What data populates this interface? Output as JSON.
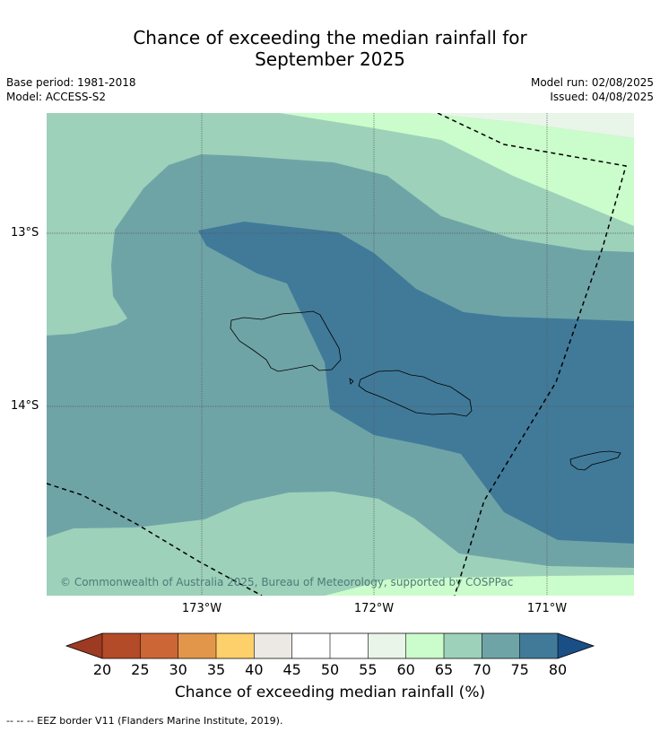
{
  "title_line1": "Chance of exceeding the median rainfall for",
  "title_line2": "September 2025",
  "base_period": "Base period: 1981-2018",
  "model": "Model: ACCESS-S2",
  "model_run": "Model run: 02/08/2025",
  "issued": "Issued: 04/08/2025",
  "lat_labels": [
    "13°S",
    "14°S"
  ],
  "lon_labels": [
    "173°W",
    "172°W",
    "171°W"
  ],
  "copyright": "© Commonwealth of Australia 2025, Bureau of Meteorology, supported by COSPPac",
  "colorbar": {
    "ticks": [
      "20",
      "25",
      "30",
      "35",
      "40",
      "45",
      "50",
      "55",
      "60",
      "65",
      "70",
      "75",
      "80"
    ],
    "label": "Chance of exceeding median rainfall (%)",
    "colors": {
      "below_20": "#9c3a22",
      "20-25": "#b34a28",
      "25-30": "#cd6636",
      "30-35": "#e2964a",
      "35-40": "#fdd06b",
      "40-45": "#ece9e4",
      "45-50": "#ffffff",
      "50-55": "#ffffff",
      "55-60": "#e8f5e8",
      "60-65": "#cbfccb",
      "65-70": "#9dd1ba",
      "70-75": "#6fa4a7",
      "75-80": "#417a99",
      "above_80": "#1a4f85"
    }
  },
  "footnote": "--  --  -- EEZ border V11 (Flanders Marine Institute, 2019)."
}
